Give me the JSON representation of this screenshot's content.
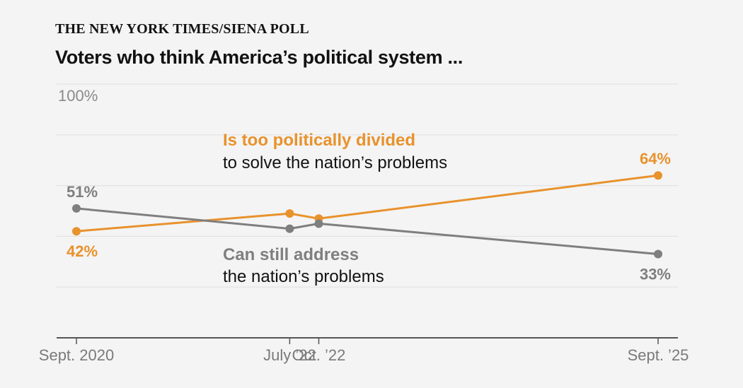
{
  "kicker": "THE NEW YORK TIMES/SIENA POLL",
  "headline": "Voters who think America’s political system ...",
  "chart_data": {
    "type": "line",
    "title": "Voters who think America’s political system ...",
    "xlabel": "",
    "ylabel": "",
    "ylim": [
      0,
      100
    ],
    "y_ticks": [
      0,
      20,
      40,
      60,
      80,
      100
    ],
    "y_tick_labels": [
      "",
      "",
      "",
      "",
      "",
      "100%"
    ],
    "grid": true,
    "x": [
      "2020-09",
      "2022-07",
      "2022-10",
      "2025-09"
    ],
    "x_tick_labels": [
      "Sept. 2020",
      "July ’22",
      "Oct. ’22",
      "Sept. ’25"
    ],
    "series": [
      {
        "key": "divided",
        "name": "Is too politically divided",
        "name_sub": "to solve the nation’s problems",
        "color": "#e8922c",
        "values": [
          42,
          49,
          47,
          64
        ],
        "value_labels": [
          "42%",
          "",
          "",
          "64%"
        ]
      },
      {
        "key": "address",
        "name": "Can still address",
        "name_sub": "the nation’s problems",
        "color": "#7f7f7f",
        "values": [
          51,
          43,
          45,
          33
        ],
        "value_labels": [
          "51%",
          "",
          "",
          "33%"
        ]
      }
    ]
  }
}
